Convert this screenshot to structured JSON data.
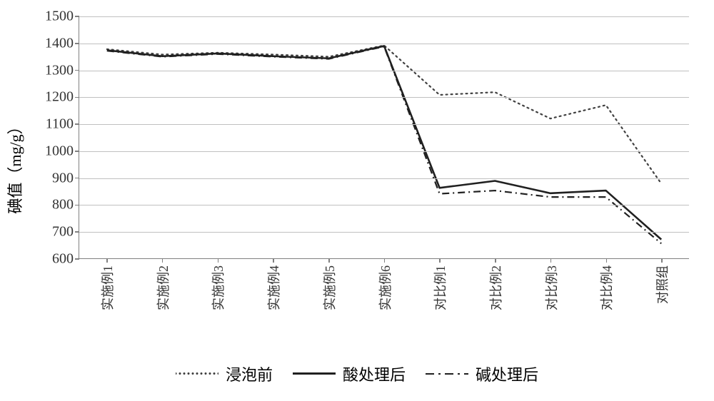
{
  "chart": {
    "type": "line",
    "y_axis": {
      "label": "碘值（mg/g）",
      "min": 600,
      "max": 1500,
      "tick_step": 100,
      "ticks": [
        600,
        700,
        800,
        900,
        1000,
        1100,
        1200,
        1300,
        1400,
        1500
      ],
      "label_fontsize": 22,
      "tick_fontsize": 20
    },
    "x_axis": {
      "categories": [
        "实施例1",
        "实施例2",
        "实施例3",
        "实施例4",
        "实施例5",
        "实施例6",
        "对比例1",
        "对比例2",
        "对比例3",
        "对比例4",
        "对照组"
      ],
      "label_rotation_deg": -90,
      "tick_fontsize": 18
    },
    "series": [
      {
        "name": "浸泡前",
        "dash": "dot",
        "color": "#404040",
        "width": 2.2,
        "values": [
          1378,
          1358,
          1365,
          1358,
          1350,
          1392,
          1208,
          1218,
          1120,
          1170,
          878
        ]
      },
      {
        "name": "酸处理后",
        "dash": "solid",
        "color": "#202020",
        "width": 2.6,
        "values": [
          1374,
          1352,
          1362,
          1352,
          1344,
          1390,
          862,
          888,
          842,
          852,
          670
        ]
      },
      {
        "name": "碱处理后",
        "dash": "dashdot",
        "color": "#202020",
        "width": 2.2,
        "values": [
          1372,
          1350,
          1360,
          1350,
          1342,
          1388,
          840,
          852,
          828,
          828,
          655
        ]
      }
    ],
    "plot_style": {
      "background_color": "#ffffff",
      "grid_color": "#c0c0c0",
      "axis_color": "#808080"
    },
    "legend": {
      "position": "bottom",
      "fontsize": 22
    }
  }
}
